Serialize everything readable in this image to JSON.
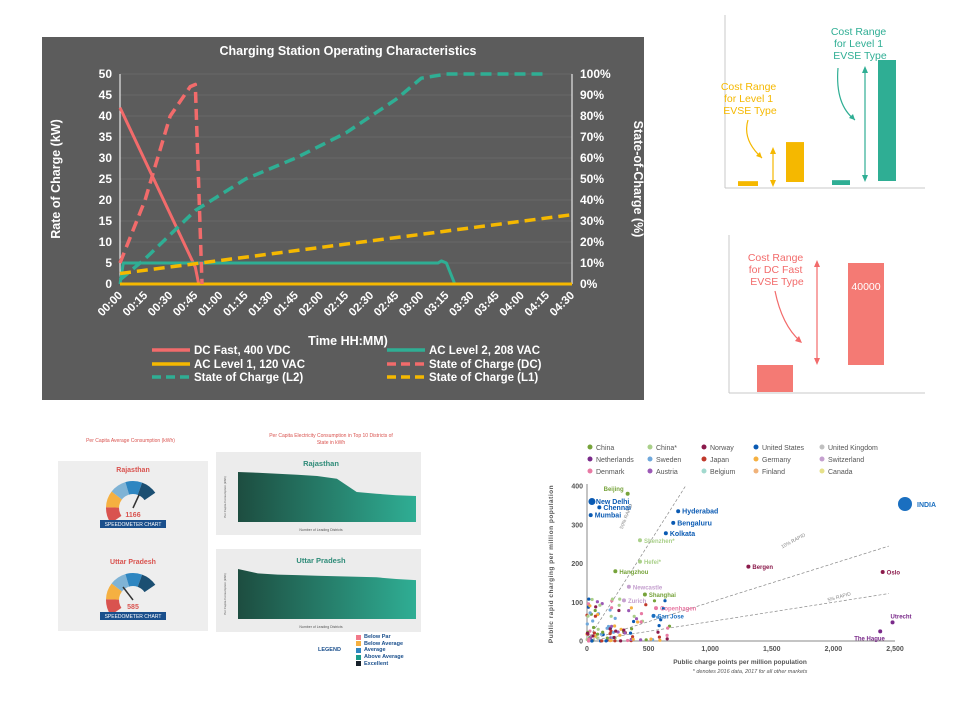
{
  "main_chart": {
    "title": "Charging Station Operating Characteristics",
    "xlabel": "Time HH:MM)",
    "ylabel_left": "Rate of Charge (kW)",
    "ylabel_right": "State-of-Charge (%)",
    "left_ticks": [
      "0",
      "5",
      "10",
      "15",
      "20",
      "25",
      "30",
      "35",
      "40",
      "45",
      "50"
    ],
    "right_ticks": [
      "0%",
      "10%",
      "20%",
      "30%",
      "40%",
      "50%",
      "60%",
      "70%",
      "80%",
      "90%",
      "100%"
    ],
    "x_ticks": [
      "00:00",
      "00:15",
      "00:30",
      "00:45",
      "01:00",
      "01:15",
      "01:30",
      "01:45",
      "02:00",
      "02:15",
      "02:30",
      "02:45",
      "03:00",
      "03:15",
      "03:30",
      "03:45",
      "04:00",
      "04:15",
      "04:30"
    ],
    "legend": [
      "DC Fast, 400 VDC",
      "AC Level 2, 208 VAC",
      "AC Level 1, 120 VAC",
      "State of Charge (DC)",
      "State of Charge (L2)",
      "State of Charge (L1)"
    ]
  },
  "chart_data": [
    {
      "type": "line",
      "title": "Charging Station Operating Characteristics",
      "xlabel": "Time HH:MM)",
      "ylabel": "Rate of Charge (kW)",
      "y2label": "State-of-Charge (%)",
      "ylim": [
        0,
        50
      ],
      "y2lim": [
        0,
        100
      ],
      "x_minutes": [
        0,
        270
      ],
      "series": [
        {
          "name": "DC Fast, 400 VDC",
          "axis": "left",
          "style": "solid",
          "color": "#f26b6b",
          "points": [
            [
              0,
              42
            ],
            [
              45,
              4
            ],
            [
              47,
              0
            ],
            [
              60,
              0
            ]
          ]
        },
        {
          "name": "AC Level 2, 208 VAC",
          "axis": "left",
          "style": "solid",
          "color": "#2fae94",
          "points": [
            [
              0,
              0
            ],
            [
              2,
              5
            ],
            [
              190,
              5
            ],
            [
              192,
              5.5
            ],
            [
              195,
              5
            ],
            [
              200,
              0
            ],
            [
              210,
              0
            ]
          ]
        },
        {
          "name": "AC Level 1, 120 VAC",
          "axis": "left",
          "style": "solid",
          "color": "#f5b800",
          "points": [
            [
              0,
              0
            ],
            [
              270,
              0
            ]
          ]
        },
        {
          "name": "State of Charge (DC)",
          "axis": "right",
          "style": "dashed",
          "color": "#f26b6b",
          "points": [
            [
              0,
              10
            ],
            [
              15,
              40
            ],
            [
              30,
              80
            ],
            [
              42,
              94
            ],
            [
              45,
              95
            ],
            [
              49,
              0
            ]
          ]
        },
        {
          "name": "State of Charge (L2)",
          "axis": "right",
          "style": "dashed",
          "color": "#2fae94",
          "points": [
            [
              0,
              2
            ],
            [
              15,
              12
            ],
            [
              45,
              35
            ],
            [
              75,
              50
            ],
            [
              105,
              60
            ],
            [
              135,
              72
            ],
            [
              165,
              88
            ],
            [
              180,
              98
            ],
            [
              195,
              100
            ],
            [
              255,
              100
            ]
          ]
        },
        {
          "name": "State of Charge (L1)",
          "axis": "right",
          "style": "dashed",
          "color": "#f5b800",
          "points": [
            [
              0,
              5
            ],
            [
              270,
              33
            ]
          ]
        }
      ]
    },
    {
      "type": "bar",
      "title": "Cost Range for Level 1 EVSE Type / Cost Range for Level 1 EVSE Type",
      "series": [
        {
          "name": "Cost Range for Level 1 EVSE Type",
          "color": "#f5b800",
          "values": [
            4,
            33
          ]
        },
        {
          "name": "Cost Range for Level 1 EVSE Type",
          "color": "#2fae94",
          "values": [
            4,
            100
          ]
        }
      ]
    },
    {
      "type": "bar",
      "title": "Cost Range for DC Fast EVSE Type",
      "categories": [
        "min",
        "max"
      ],
      "values": [
        10000,
        40000
      ],
      "data_labels": [
        "",
        "40000"
      ]
    },
    {
      "type": "scatter",
      "xlabel": "Public charge points per million population",
      "ylabel": "Public rapid charging per million population",
      "xlim": [
        0,
        2500
      ],
      "ylim": [
        0,
        400
      ],
      "x_ticks": [
        "0",
        "500",
        "1,000",
        "1,500",
        "2,000",
        "2,500"
      ],
      "y_ticks": [
        "0",
        "100",
        "200",
        "300",
        "400"
      ],
      "guides": [
        "50% RAPID",
        "10% RAPID",
        "5% RAPID"
      ],
      "points": [
        {
          "label": "Beijing",
          "x": 330,
          "y": 380,
          "color": "#76a33a"
        },
        {
          "label": "New Delhi",
          "x": 40,
          "y": 360,
          "color": "#0a5ab3"
        },
        {
          "label": "Chennai",
          "x": 100,
          "y": 345,
          "color": "#0a5ab3"
        },
        {
          "label": "Mumbai",
          "x": 30,
          "y": 325,
          "color": "#0a5ab3"
        },
        {
          "label": "Hyderabad",
          "x": 740,
          "y": 335,
          "color": "#0a5ab3"
        },
        {
          "label": "Bengaluru",
          "x": 700,
          "y": 305,
          "color": "#0a5ab3"
        },
        {
          "label": "Kolkata",
          "x": 640,
          "y": 278,
          "color": "#0a5ab3"
        },
        {
          "label": "Shenzhen*",
          "x": 430,
          "y": 260,
          "color": "#aad08a"
        },
        {
          "label": "Hefei*",
          "x": 430,
          "y": 205,
          "color": "#aad08a"
        },
        {
          "label": "Hangzhou",
          "x": 230,
          "y": 180,
          "color": "#76a33a"
        },
        {
          "label": "Bergen",
          "x": 1310,
          "y": 192,
          "color": "#8b1a4b"
        },
        {
          "label": "Oslo",
          "x": 2400,
          "y": 178,
          "color": "#8b1a4b"
        },
        {
          "label": "Newcastle",
          "x": 340,
          "y": 140,
          "color": "#c5a0cf"
        },
        {
          "label": "Shanghai",
          "x": 470,
          "y": 120,
          "color": "#76a33a"
        },
        {
          "label": "Zurich",
          "x": 300,
          "y": 105,
          "color": "#c5a0cf"
        },
        {
          "label": "Copenhagen",
          "x": 560,
          "y": 85,
          "color": "#e87aa4"
        },
        {
          "label": "San Jose",
          "x": 540,
          "y": 65,
          "color": "#1a6fc0"
        },
        {
          "label": "Utrecht",
          "x": 2480,
          "y": 48,
          "color": "#7a2a8a"
        },
        {
          "label": "The Hague",
          "x": 2380,
          "y": 25,
          "color": "#7a2a8a"
        },
        {
          "label": "INDIA",
          "x": 0,
          "y": 0,
          "color": "#1a6fc0"
        }
      ],
      "legend": [
        "China",
        "China*",
        "Norway",
        "United States",
        "United Kingdom",
        "Netherlands",
        "Sweden",
        "Japan",
        "Germany",
        "Switzerland",
        "Denmark",
        "Austria",
        "Belgium",
        "Finland",
        "Canada"
      ],
      "footnote": "* denotes 2016 data, 2017 for all other markets",
      "callout": "INDIA"
    }
  ],
  "cost_l1": {
    "orange_label_lines": [
      "Cost Range",
      "for Level 1",
      "EVSE Type"
    ],
    "teal_label_lines": [
      "Cost Range",
      "for Level 1",
      "EVSE Type"
    ]
  },
  "cost_dc": {
    "label_lines": [
      "Cost Range",
      "for DC Fast",
      "EVSE Type"
    ],
    "value_label": "40000"
  },
  "dashboard": {
    "left_title": "Per Capita Average Consumption (kWh)",
    "right_title": "Per Capita Electricity Consumption in Top 10 Districts of State in kWh",
    "states": [
      {
        "name": "Rajasthan",
        "value": "1166",
        "badge": "SPEEDOMETER CHART",
        "area_title": "Rajasthan",
        "x_label": "Number of Leading Districts",
        "y_label": "Per Capita Consumption (kWh)",
        "area_values": [
          1500,
          1480,
          1450,
          1420,
          1380,
          1300,
          900,
          850,
          800,
          780
        ],
        "ymax": 1500
      },
      {
        "name": "Uttar Pradesh",
        "value": "585",
        "badge": "SPEEDOMETER CHART",
        "area_title": "Uttar Pradesh",
        "x_label": "Number of Leading Districts",
        "y_label": "Per Capita Consumption (kWh)",
        "area_values": [
          900,
          820,
          800,
          790,
          780,
          770,
          760,
          750,
          720,
          700
        ],
        "ymax": 900
      }
    ],
    "legend_title": "LEGEND",
    "legend": [
      {
        "label": "Below Par",
        "color": "#f27a8a"
      },
      {
        "label": "Below Average",
        "color": "#f5b041"
      },
      {
        "label": "Average",
        "color": "#2e86c1"
      },
      {
        "label": "Above Average",
        "color": "#1a9c8c"
      },
      {
        "label": "Excellent",
        "color": "#17202a"
      }
    ]
  }
}
